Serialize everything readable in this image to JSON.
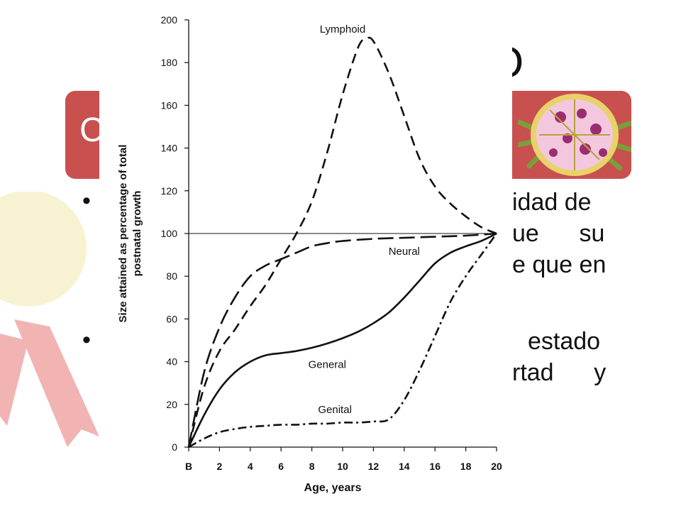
{
  "slide": {
    "title_fragment": "O",
    "banner_text": "C",
    "bullets": [
      {
        "line1": "idad de",
        "line2": "ue      su",
        "line3": "e que en"
      },
      {
        "line1": "estado",
        "line2": "rtad      y"
      }
    ],
    "colors": {
      "banner": "#c8504f",
      "ribbon": "#f2b3b3",
      "ribbon_light": "#f7f3d2"
    }
  },
  "chart_data": {
    "type": "line",
    "title": "",
    "xlabel": "Age, years",
    "ylabel": "Size attained as percentage of total postnatal growth",
    "xlim": [
      0,
      20
    ],
    "ylim": [
      0,
      200
    ],
    "x_ticks": [
      "B",
      "2",
      "4",
      "6",
      "8",
      "10",
      "12",
      "14",
      "16",
      "18",
      "20"
    ],
    "y_ticks": [
      "0",
      "20",
      "40",
      "60",
      "80",
      "100",
      "120",
      "140",
      "160",
      "180",
      "200"
    ],
    "reference_line": 100,
    "grid": false,
    "series": [
      {
        "name": "Lymphoid",
        "style": "dashed",
        "x": [
          0,
          1,
          2,
          3,
          4,
          5,
          6,
          7,
          8,
          9,
          10,
          11,
          11.5,
          12,
          13,
          14,
          15,
          16,
          17,
          18,
          19,
          20
        ],
        "y": [
          0,
          28,
          45,
          55,
          66,
          76,
          88,
          100,
          115,
          138,
          165,
          187,
          191,
          190,
          175,
          155,
          135,
          122,
          114,
          108,
          103,
          100
        ]
      },
      {
        "name": "Neural",
        "style": "long-dashed",
        "x": [
          0,
          1,
          2,
          3,
          4,
          5,
          6,
          7,
          8,
          9,
          10,
          12,
          14,
          16,
          18,
          20
        ],
        "y": [
          0,
          35,
          56,
          70,
          80,
          85,
          88,
          91,
          94,
          95.5,
          96.5,
          97.5,
          98,
          98.5,
          99,
          100
        ]
      },
      {
        "name": "General",
        "style": "solid",
        "x": [
          0,
          1,
          2,
          3,
          4,
          5,
          6,
          7,
          8,
          9,
          10,
          11,
          12,
          13,
          14,
          15,
          16,
          17,
          18,
          19,
          20
        ],
        "y": [
          0,
          15,
          27,
          35,
          40,
          43,
          44,
          45,
          46.5,
          48.5,
          51,
          54,
          58,
          63,
          70,
          78,
          86,
          91,
          94,
          96.5,
          100
        ]
      },
      {
        "name": "Genital",
        "style": "dash-dot",
        "x": [
          0,
          1,
          2,
          3,
          4,
          5,
          6,
          7,
          8,
          9,
          10,
          11,
          12,
          13,
          14,
          15,
          16,
          17,
          18,
          19,
          20
        ],
        "y": [
          0,
          4,
          7,
          8.5,
          9.5,
          10,
          10.5,
          10.5,
          11,
          11,
          11.5,
          11.5,
          12,
          13,
          22,
          36,
          52,
          68,
          80,
          90,
          100
        ]
      }
    ]
  }
}
